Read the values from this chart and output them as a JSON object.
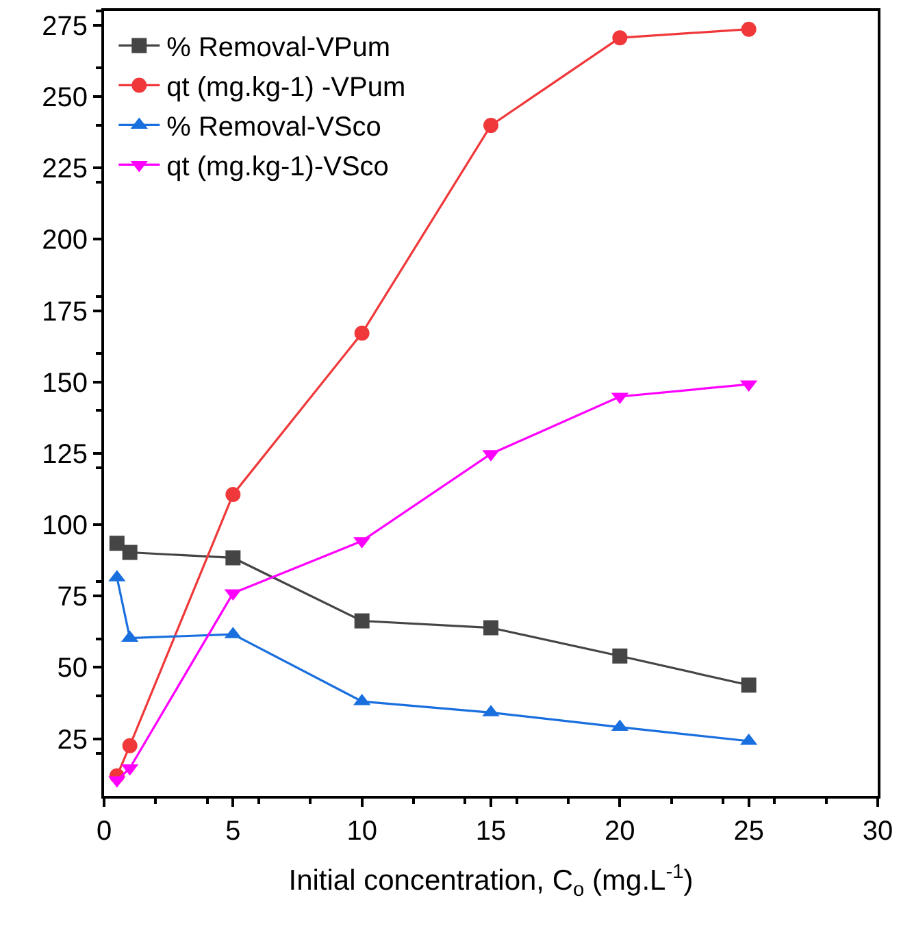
{
  "chart_data": {
    "type": "line",
    "xlabel": "Initial concentration, C$_{o}$ (mg.L$^{-1}$)",
    "xlim": [
      0,
      30
    ],
    "xticks": [
      0,
      5,
      10,
      15,
      20,
      25,
      30
    ],
    "ylim": [
      5,
      280
    ],
    "yticks": [
      25,
      50,
      75,
      100,
      125,
      150,
      175,
      200,
      225,
      250,
      275
    ],
    "x": [
      0.5,
      1,
      5,
      10,
      15,
      20,
      25
    ],
    "legend": "top left",
    "series": [
      {
        "name": "% Removal-VPum",
        "color": "#454545",
        "marker": "square",
        "values": [
          93.5,
          90.3,
          88.4,
          66.3,
          63.9,
          54,
          43.8
        ]
      },
      {
        "name": "qt (mg.kg-1) -VPum",
        "color": "#f0383a",
        "marker": "circle",
        "values": [
          12,
          22.6,
          110.6,
          167.1,
          239.9,
          270.6,
          273.6
        ]
      },
      {
        "name": "% Removal-VSco",
        "color": "#1a6fdf",
        "marker": "triangle",
        "values": [
          81.5,
          60.3,
          61.6,
          38.1,
          34.2,
          29.1,
          24.2
        ]
      },
      {
        "name": "qt (mg.kg-1)-VSco",
        "color": "#ff00ff",
        "marker": "triangle-down",
        "values": [
          10.5,
          14.7,
          76,
          94.3,
          124.8,
          144.9,
          149.2
        ]
      }
    ]
  }
}
